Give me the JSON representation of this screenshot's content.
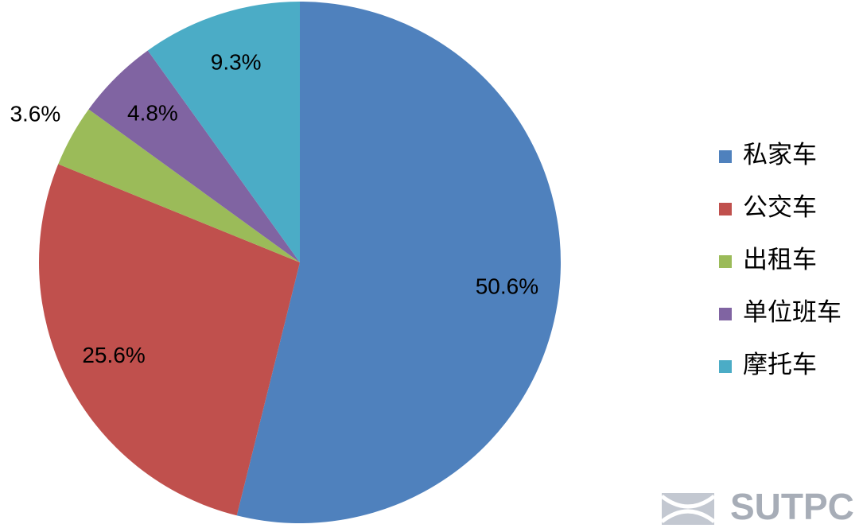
{
  "chart_data": {
    "type": "pie",
    "categories": [
      "私家车",
      "公交车",
      "出租车",
      "单位班车",
      "摩托车"
    ],
    "values": [
      50.6,
      25.6,
      3.6,
      4.8,
      9.3
    ],
    "value_labels": [
      "50.6%",
      "25.6%",
      "3.6%",
      "4.8%",
      "9.3%"
    ],
    "colors": [
      "#4f81bd",
      "#c0504d",
      "#9bbb59",
      "#8064a2",
      "#4bacc6"
    ],
    "legend": "right",
    "watermark": "SUTPC"
  }
}
